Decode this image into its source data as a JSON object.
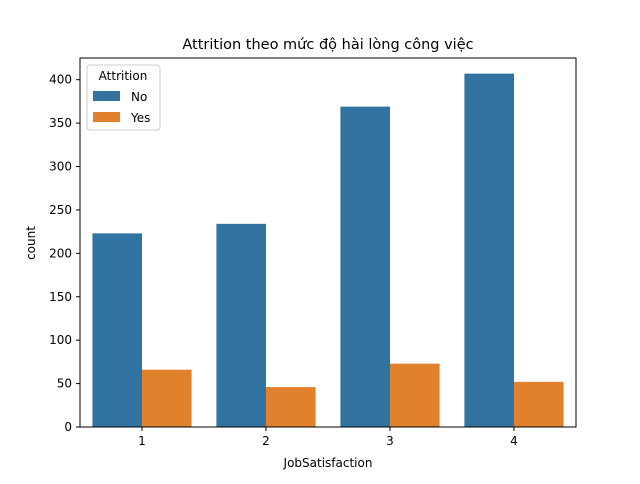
{
  "chart_data": {
    "type": "bar",
    "title": "Attrition theo mức độ hài lòng công việc",
    "xlabel": "JobSatisfaction",
    "ylabel": "count",
    "categories": [
      "1",
      "2",
      "3",
      "4"
    ],
    "series": [
      {
        "name": "No",
        "values": [
          223,
          234,
          369,
          407
        ],
        "color": "#3274a1"
      },
      {
        "name": "Yes",
        "values": [
          66,
          46,
          73,
          52
        ],
        "color": "#e1812c"
      }
    ],
    "ylim": [
      0,
      425
    ],
    "yticks": [
      0,
      50,
      100,
      150,
      200,
      250,
      300,
      350,
      400
    ],
    "grid": false,
    "legend": {
      "title": "Attrition",
      "placement": "top-left"
    }
  }
}
